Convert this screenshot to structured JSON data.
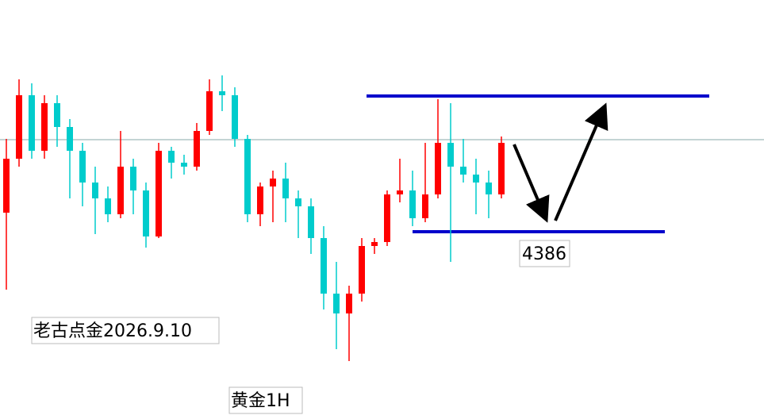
{
  "chart_data": {
    "type": "candlestick",
    "up_color": "#ff0000",
    "down_color": "#00cccc",
    "ylim": [
      4268,
      4532
    ],
    "candles": [
      [
        4398,
        4444.5,
        4349.5,
        4432
      ],
      [
        4432,
        4482,
        4427,
        4472
      ],
      [
        4472,
        4479.5,
        4432,
        4437
      ],
      [
        4437,
        4472,
        4432,
        4467
      ],
      [
        4467,
        4472,
        4439.5,
        4452
      ],
      [
        4452,
        4457,
        4407,
        4437
      ],
      [
        4437,
        4442,
        4402,
        4417
      ],
      [
        4417,
        4427,
        4384.5,
        4407
      ],
      [
        4407,
        4414.5,
        4392,
        4397
      ],
      [
        4397,
        4449.5,
        4394.5,
        4427
      ],
      [
        4427,
        4432,
        4397,
        4412
      ],
      [
        4412,
        4417,
        4376,
        4383
      ],
      [
        4383,
        4442,
        4382,
        4437
      ],
      [
        4437,
        4439.5,
        4419.5,
        4429.5
      ],
      [
        4429.5,
        4434.5,
        4422,
        4427
      ],
      [
        4427,
        4454.5,
        4424.5,
        4449.5
      ],
      [
        4449.5,
        4482,
        4447,
        4474.5
      ],
      [
        4474.5,
        4484.5,
        4462,
        4472
      ],
      [
        4472,
        4477,
        4439.5,
        4444.5
      ],
      [
        4444.5,
        4447,
        4392,
        4397
      ],
      [
        4397,
        4417,
        4389.5,
        4414.5
      ],
      [
        4414.5,
        4424.5,
        4392,
        4419.5
      ],
      [
        4419.5,
        4429.5,
        4392,
        4407
      ],
      [
        4407,
        4412,
        4382,
        4402
      ],
      [
        4402,
        4407,
        4372,
        4382
      ],
      [
        4382,
        4389.5,
        4337,
        4347
      ],
      [
        4347,
        4367,
        4312,
        4334.5
      ],
      [
        4334.5,
        4352,
        4304.5,
        4347
      ],
      [
        4347,
        4382,
        4342,
        4377
      ],
      [
        4377,
        4382,
        4372,
        4379.5
      ],
      [
        4379.5,
        4412,
        4377,
        4409.5
      ],
      [
        4409.5,
        4432,
        4404.5,
        4412
      ],
      [
        4412,
        4424.5,
        4389.5,
        4394.5
      ],
      [
        4394.5,
        4442,
        4392,
        4409.5
      ],
      [
        4409.5,
        4469.5,
        4407,
        4442
      ],
      [
        4442,
        4467,
        4367,
        4427
      ],
      [
        4427,
        4444.5,
        4417,
        4422
      ],
      [
        4422,
        4432,
        4397,
        4417
      ],
      [
        4417,
        4424.5,
        4394.5,
        4409.5
      ],
      [
        4409.5,
        4446,
        4407,
        4442
      ]
    ],
    "current_price": 4444,
    "resistance": 4471.5,
    "support": 4386,
    "level_color": "#0000cc",
    "annotations": [
      "老古点金2026.9.10",
      "黄金1H"
    ]
  }
}
